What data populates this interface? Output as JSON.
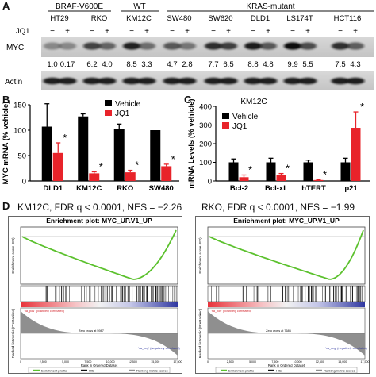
{
  "panels": {
    "a": "A",
    "b": "B",
    "c": "C",
    "d": "D"
  },
  "blot": {
    "groups": [
      {
        "label": "BRAF-V600E",
        "x0": 60,
        "x1": 140
      },
      {
        "label": "WT",
        "x0": 152,
        "x1": 200
      },
      {
        "label": "KRAS-mutant",
        "x0": 210,
        "x1": 472
      }
    ],
    "cell_lines": [
      {
        "name": "HT29",
        "cx": 75
      },
      {
        "name": "RKO",
        "cx": 125
      },
      {
        "name": "KM12C",
        "cx": 175
      },
      {
        "name": "SW480",
        "cx": 226
      },
      {
        "name": "SW620",
        "cx": 278
      },
      {
        "name": "DLD1",
        "cx": 328
      },
      {
        "name": "LS174T",
        "cx": 378
      },
      {
        "name": "HCT116",
        "cx": 438
      }
    ],
    "treatment_label": "JQ1",
    "treatment_signs": [
      "−",
      "+"
    ],
    "myc_label": "MYC",
    "actin_label": "Actin",
    "quant": [
      "1.0",
      "0.17",
      "6.2",
      "4.0",
      "8.5",
      "3.3",
      "4.7",
      "2.8",
      "7.7",
      "6.5",
      "8.8",
      "4.8",
      "9.9",
      "5.5",
      "7.5",
      "4.3"
    ]
  },
  "chart_data": [
    {
      "type": "bar",
      "panel": "B",
      "categories": [
        "DLD1",
        "KM12C",
        "RKO",
        "SW480"
      ],
      "series": [
        {
          "name": "Vehicle",
          "values": [
            107,
            127,
            102,
            100
          ],
          "errors": [
            45,
            5,
            10,
            0
          ]
        },
        {
          "name": "JQ1",
          "values": [
            55,
            15,
            17,
            29
          ],
          "errors": [
            20,
            3,
            4,
            4
          ]
        }
      ],
      "ylabel": "MYC mRNA (% vehicle)",
      "ylim": [
        0,
        150
      ],
      "yticks": [
        "0",
        "50",
        "100",
        "150"
      ],
      "significance": [
        "*",
        "*",
        "*",
        "*"
      ],
      "legend": "top-right",
      "colors": {
        "Vehicle": "#000000",
        "JQ1": "#e8232a"
      }
    },
    {
      "type": "bar",
      "panel": "C",
      "title": "KM12C",
      "categories": [
        "Bcl-2",
        "Bcl-xL",
        "hTERT",
        "p21"
      ],
      "series": [
        {
          "name": "Vehicle",
          "values": [
            100,
            100,
            100,
            100
          ],
          "errors": [
            18,
            22,
            12,
            22
          ]
        },
        {
          "name": "JQ1",
          "values": [
            20,
            32,
            5,
            285
          ],
          "errors": [
            12,
            8,
            2,
            85
          ]
        }
      ],
      "ylabel": "mRNA Levels (% vehicle)",
      "ylim": [
        0,
        400
      ],
      "yticks": [
        "0",
        "100",
        "200",
        "300",
        "400"
      ],
      "significance": [
        "*",
        "*",
        "*",
        "*"
      ],
      "legend": "top-left",
      "colors": {
        "Vehicle": "#000000",
        "JQ1": "#e8232a"
      }
    }
  ],
  "gsea": [
    {
      "title": "KM12C, FDR q < 0.0001, NES = −2.26",
      "plot_title": "Enrichment plot: MYC_UP.V1_UP",
      "es_ylabel": "Enrichment score (ES)",
      "rank_ylabel": "Ranked list metric (PreRanked)",
      "xlabel": "Rank in Ordered Dataset",
      "pos_label": "'na_pos' (positively correlated)",
      "neg_label": "'na_neg' (negatively correlated)",
      "zero_cross": "Zero cross at 5987",
      "legend": [
        "Enrichment profile",
        "Hits",
        "Ranking metric scores"
      ],
      "xticks": [
        "0",
        "2,500",
        "5,000",
        "7,500",
        "10,000",
        "12,500",
        "15,000",
        "17,500"
      ]
    },
    {
      "title": "RKO, FDR q < 0.0001, NES = −1.99",
      "plot_title": "Enrichment plot: MYC_UP.V1_UP",
      "es_ylabel": "Enrichment score (ES)",
      "rank_ylabel": "Ranked list metric (PreRanked)",
      "xlabel": "Rank in Ordered Dataset",
      "pos_label": "'na_pos' (positively correlated)",
      "neg_label": "'na_neg' (negatively correlated)",
      "zero_cross": "Zero cross at 7686",
      "legend": [
        "Enrichment profile",
        "Hits",
        "Ranking metric scores"
      ],
      "xticks": [
        "0",
        "2,500",
        "5,000",
        "7,500",
        "10,000",
        "12,500",
        "15,000",
        "17,500"
      ]
    }
  ]
}
